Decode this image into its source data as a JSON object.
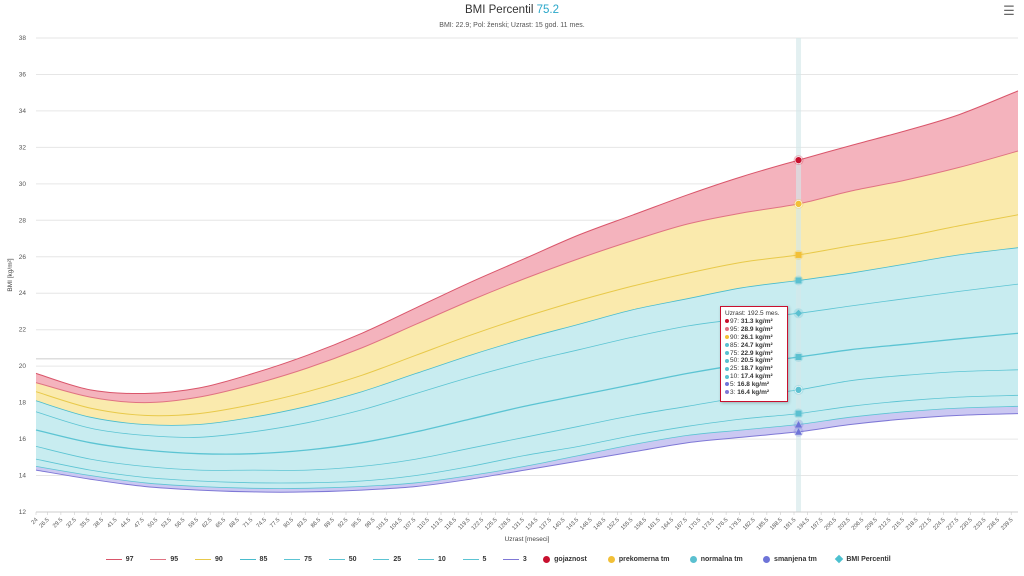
{
  "header": {
    "title_prefix": "BMI Percentil",
    "title_value": "75.2",
    "subtitle": "BMI: 22.9; Pol: ženski; Uzrast: 15 god. 11 mes.",
    "menu_icon": "hamburger-menu-icon"
  },
  "colors": {
    "p97": "#d9556a",
    "p95": "#e07382",
    "p90": "#e8c94a",
    "p85": "#49bccd",
    "teal_mid": "#5cc4d3",
    "p3": "#7f78d6",
    "band_red": "#f4b3bd",
    "band_yellow": "#faeaad",
    "band_cyan": "#c8ecf0",
    "band_purple": "#cbc8f2",
    "gojaznost": "#c8102e",
    "prekomerna": "#f2c037",
    "normalna": "#5bc0d0",
    "smanjena": "#6e74d8",
    "bmi_percentil": "#4cc0cf"
  },
  "chart_data": {
    "type": "area",
    "title": "BMI Percentil 75.2",
    "subtitle": "BMI: 22.9; Pol: ženski; Uzrast: 15 god. 11 mes.",
    "xlabel": "Uzrast [meseci]",
    "ylabel": "BMI [kg/m²]",
    "xlim": [
      24,
      241
    ],
    "ylim": [
      12,
      38
    ],
    "y_ticks": [
      12,
      14,
      16,
      18,
      20,
      22,
      24,
      26,
      28,
      30,
      32,
      34,
      36,
      38
    ],
    "x_ticks": [
      "24",
      "26.5",
      "29.5",
      "32.5",
      "35.5",
      "38.5",
      "41.5",
      "44.5",
      "47.5",
      "50.5",
      "53.5",
      "56.5",
      "59.5",
      "62.5",
      "65.5",
      "68.5",
      "71.5",
      "74.5",
      "77.5",
      "80.5",
      "83.5",
      "86.5",
      "89.5",
      "92.5",
      "95.5",
      "98.5",
      "101.5",
      "104.5",
      "107.5",
      "110.5",
      "113.5",
      "116.5",
      "119.5",
      "122.5",
      "125.5",
      "128.5",
      "131.5",
      "134.5",
      "137.5",
      "140.5",
      "143.5",
      "146.5",
      "149.5",
      "152.5",
      "155.5",
      "158.5",
      "161.5",
      "164.5",
      "167.5",
      "170.5",
      "173.5",
      "176.5",
      "179.5",
      "182.5",
      "185.5",
      "188.5",
      "191.5",
      "194.5",
      "197.5",
      "200.5",
      "203.5",
      "206.5",
      "209.5",
      "212.5",
      "215.5",
      "218.5",
      "221.5",
      "224.5",
      "227.5",
      "230.5",
      "233.5",
      "236.5",
      "239.5"
    ],
    "x": [
      24,
      36,
      48,
      60,
      72,
      84,
      96,
      108,
      120,
      132,
      144,
      156,
      168,
      180,
      192.5,
      204,
      216,
      228,
      241
    ],
    "series": [
      {
        "name": "97",
        "values": [
          19.6,
          18.7,
          18.5,
          18.8,
          19.6,
          20.6,
          21.8,
          23.2,
          24.6,
          25.9,
          27.2,
          28.3,
          29.4,
          30.4,
          31.3,
          32.1,
          32.9,
          33.8,
          35.1
        ]
      },
      {
        "name": "95",
        "values": [
          19.1,
          18.3,
          18.0,
          18.3,
          19.0,
          19.9,
          21.0,
          22.3,
          23.6,
          24.8,
          25.9,
          26.9,
          27.8,
          28.4,
          28.9,
          29.6,
          30.2,
          30.9,
          31.8
        ]
      },
      {
        "name": "90",
        "values": [
          18.6,
          17.7,
          17.3,
          17.4,
          17.9,
          18.6,
          19.5,
          20.6,
          21.7,
          22.7,
          23.6,
          24.4,
          25.1,
          25.7,
          26.1,
          26.6,
          27.1,
          27.7,
          28.3
        ]
      },
      {
        "name": "85",
        "values": [
          18.1,
          17.2,
          16.8,
          16.8,
          17.2,
          17.8,
          18.6,
          19.6,
          20.6,
          21.5,
          22.3,
          23.1,
          23.7,
          24.3,
          24.7,
          25.1,
          25.6,
          26.1,
          26.5
        ]
      },
      {
        "name": "75",
        "values": [
          17.5,
          16.6,
          16.2,
          16.1,
          16.4,
          16.9,
          17.6,
          18.5,
          19.4,
          20.2,
          20.9,
          21.6,
          22.2,
          22.6,
          22.9,
          23.3,
          23.7,
          24.1,
          24.5
        ]
      },
      {
        "name": "50",
        "values": [
          16.5,
          15.8,
          15.4,
          15.2,
          15.2,
          15.4,
          15.8,
          16.4,
          17.1,
          17.8,
          18.4,
          19.0,
          19.6,
          20.1,
          20.5,
          20.9,
          21.2,
          21.5,
          21.8
        ]
      },
      {
        "name": "25",
        "values": [
          15.6,
          14.9,
          14.5,
          14.3,
          14.3,
          14.3,
          14.5,
          14.9,
          15.5,
          16.1,
          16.7,
          17.3,
          17.8,
          18.3,
          18.7,
          19.2,
          19.5,
          19.7,
          19.8
        ]
      },
      {
        "name": "10",
        "values": [
          14.9,
          14.3,
          13.9,
          13.7,
          13.6,
          13.6,
          13.7,
          14.0,
          14.5,
          15.1,
          15.6,
          16.2,
          16.7,
          17.1,
          17.4,
          17.8,
          18.1,
          18.3,
          18.4
        ]
      },
      {
        "name": "5",
        "values": [
          14.5,
          14.0,
          13.6,
          13.4,
          13.3,
          13.3,
          13.4,
          13.6,
          14.0,
          14.5,
          15.1,
          15.7,
          16.2,
          16.5,
          16.8,
          17.2,
          17.5,
          17.7,
          17.8
        ]
      },
      {
        "name": "3",
        "values": [
          14.3,
          13.8,
          13.4,
          13.2,
          13.1,
          13.1,
          13.2,
          13.4,
          13.8,
          14.3,
          14.8,
          15.3,
          15.8,
          16.1,
          16.4,
          16.8,
          17.1,
          17.3,
          17.4
        ]
      }
    ],
    "bands": [
      {
        "name": "gojaznost",
        "upper": "97",
        "lower": "95"
      },
      {
        "name": "prekomerna tm",
        "upper": "95",
        "lower": "85"
      },
      {
        "name": "normalna tm",
        "upper": "85",
        "lower": "5"
      },
      {
        "name": "smanjena tm",
        "upper": "5",
        "lower": "3"
      }
    ],
    "crosshair_x": 192.5,
    "markers": [
      {
        "series": "97",
        "shape": "circle",
        "color": "#c8102e"
      },
      {
        "series": "95",
        "shape": "circle",
        "color": "#f2c037"
      },
      {
        "series": "90",
        "shape": "square",
        "color": "#f2c037"
      },
      {
        "series": "85",
        "shape": "square",
        "color": "#5bc0d0"
      },
      {
        "series": "75",
        "shape": "diamond",
        "color": "#5bc0d0"
      },
      {
        "series": "50",
        "shape": "square",
        "color": "#5bc0d0"
      },
      {
        "series": "25",
        "shape": "circle",
        "color": "#5bc0d0"
      },
      {
        "series": "10",
        "shape": "square",
        "color": "#5bc0d0"
      },
      {
        "series": "5",
        "shape": "triangle",
        "color": "#6e74d8"
      },
      {
        "series": "3",
        "shape": "triangle",
        "color": "#6e74d8"
      }
    ],
    "reference_line_y": 20.4,
    "legend_placement": "bottom",
    "grid": true
  },
  "tooltip": {
    "header": "Uzrast: 192.5 mes.",
    "rows": [
      {
        "label": "97:",
        "value": "31.3 kg/m²",
        "color": "#c8102e"
      },
      {
        "label": "95:",
        "value": "28.9 kg/m²",
        "color": "#e07382"
      },
      {
        "label": "90:",
        "value": "26.1 kg/m²",
        "color": "#f2c037"
      },
      {
        "label": "85:",
        "value": "24.7 kg/m²",
        "color": "#5bc0d0"
      },
      {
        "label": "75:",
        "value": "22.9 kg/m²",
        "color": "#5bc0d0"
      },
      {
        "label": "50:",
        "value": "20.5 kg/m²",
        "color": "#5bc0d0"
      },
      {
        "label": "25:",
        "value": "18.7 kg/m²",
        "color": "#5bc0d0"
      },
      {
        "label": "10:",
        "value": "17.4 kg/m²",
        "color": "#5bc0d0"
      },
      {
        "label": "5:",
        "value": "16.8 kg/m²",
        "color": "#6e74d8"
      },
      {
        "label": "3:",
        "value": "16.4 kg/m²",
        "color": "#7f78d6"
      }
    ]
  },
  "legend": [
    {
      "label": "97",
      "kind": "line",
      "color": "#d9556a"
    },
    {
      "label": "95",
      "kind": "line",
      "color": "#e07382"
    },
    {
      "label": "90",
      "kind": "line",
      "color": "#e8c94a"
    },
    {
      "label": "85",
      "kind": "line",
      "color": "#49bccd"
    },
    {
      "label": "75",
      "kind": "line",
      "color": "#5cc4d3"
    },
    {
      "label": "50",
      "kind": "line",
      "color": "#5cc4d3"
    },
    {
      "label": "25",
      "kind": "line",
      "color": "#5cc4d3"
    },
    {
      "label": "10",
      "kind": "line",
      "color": "#5cc4d3"
    },
    {
      "label": "5",
      "kind": "line",
      "color": "#5cc4d3"
    },
    {
      "label": "3",
      "kind": "line",
      "color": "#7f78d6"
    },
    {
      "label": "gojaznost",
      "kind": "dot",
      "color": "#c8102e"
    },
    {
      "label": "prekomerna tm",
      "kind": "dot",
      "color": "#f2c037"
    },
    {
      "label": "normalna tm",
      "kind": "dot",
      "color": "#5bc0d0"
    },
    {
      "label": "smanjena tm",
      "kind": "dot",
      "color": "#6e74d8"
    },
    {
      "label": "BMI Percentil",
      "kind": "diamond",
      "color": "#4cc0cf"
    }
  ]
}
